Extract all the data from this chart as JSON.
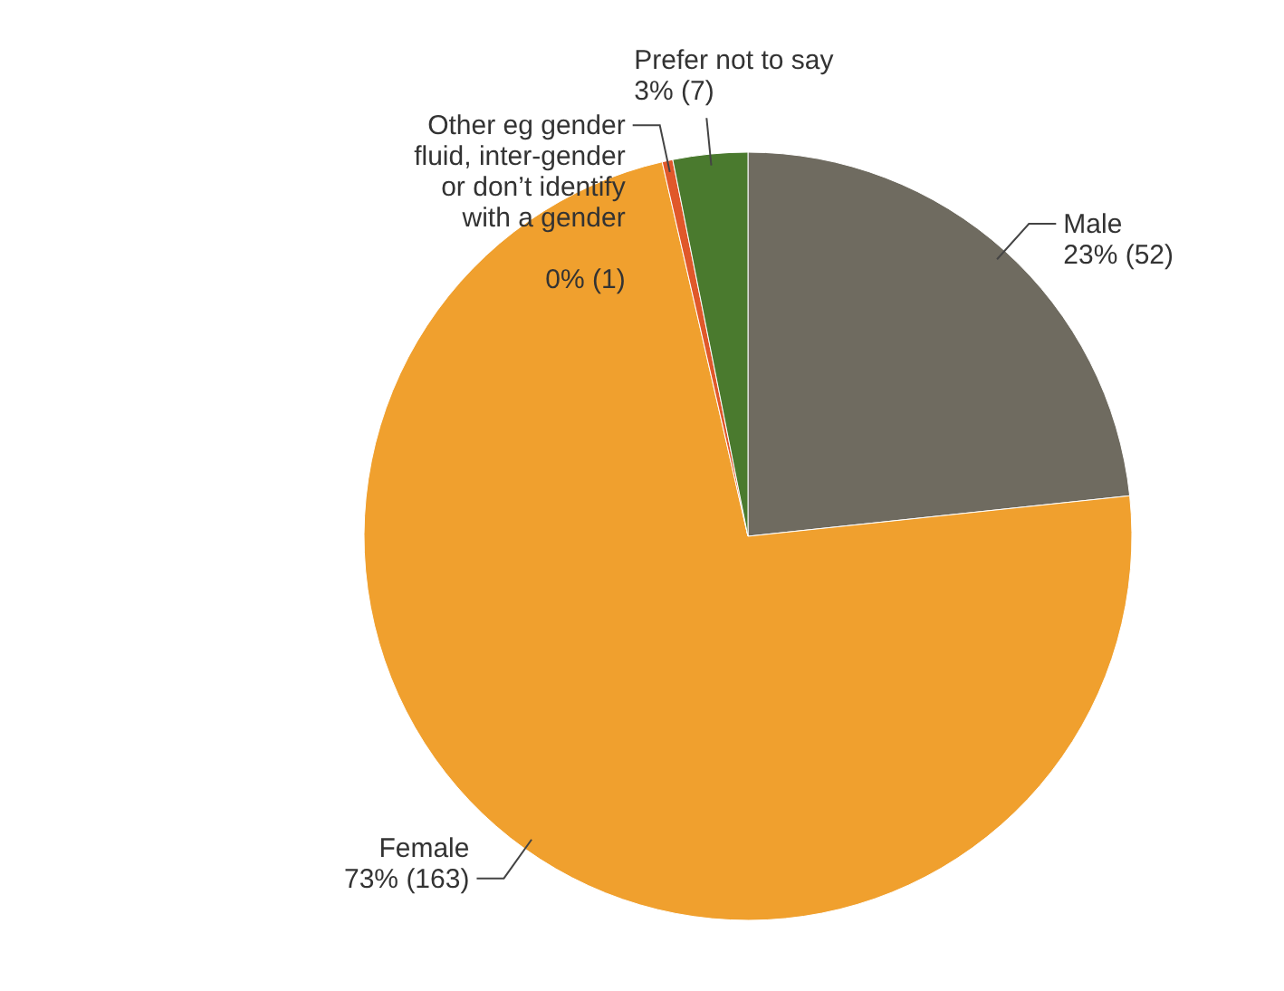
{
  "chart_data": {
    "type": "pie",
    "categories": [
      "Male",
      "Female",
      "Other eg gender fluid, inter-gender or don’t identify with a gender",
      "Prefer not to say"
    ],
    "values": [
      52,
      163,
      1,
      7
    ],
    "value_labels": [
      "23% (52)",
      "73% (163)",
      "0% (1)",
      "3% (7)"
    ],
    "colors": [
      "#6f6b60",
      "#f0a02e",
      "#e0582a",
      "#4a7a2e"
    ]
  }
}
